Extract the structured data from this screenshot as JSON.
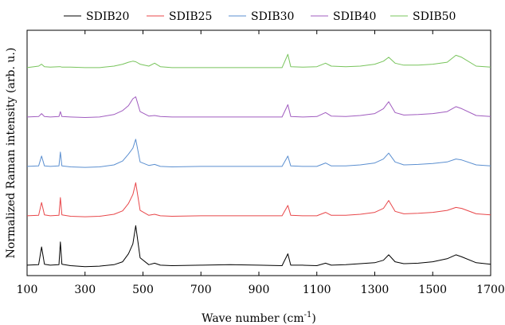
{
  "chart_data": {
    "type": "line",
    "title": "",
    "xlabel": "Wave number (cm",
    "xlabel_sup": "-1",
    "xlabel_close": ")",
    "ylabel": "Normalized Raman intensity (arb. u.)",
    "xlim": [
      100,
      1700
    ],
    "x_ticks": [
      100,
      300,
      500,
      700,
      900,
      1100,
      1300,
      1500,
      1700
    ],
    "x_tick_labels": [
      "100",
      "300",
      "500",
      "700",
      "900",
      "1100",
      "1300",
      "1500",
      "1700"
    ],
    "y_ticks_shown": false,
    "grid": false,
    "legend_position": "top-outside",
    "x": [
      100,
      140,
      150,
      160,
      180,
      210,
      215,
      220,
      250,
      300,
      350,
      400,
      430,
      450,
      465,
      475,
      490,
      520,
      540,
      560,
      600,
      700,
      800,
      900,
      980,
      1000,
      1010,
      1050,
      1100,
      1130,
      1150,
      1200,
      1250,
      1300,
      1330,
      1348,
      1370,
      1400,
      1450,
      1500,
      1550,
      1580,
      1600,
      1650,
      1700
    ],
    "series": [
      {
        "name": "SDIB20",
        "color": "#000000",
        "offset": 0,
        "values": [
          0.05,
          0.06,
          0.42,
          0.07,
          0.05,
          0.06,
          0.52,
          0.07,
          0.04,
          0.02,
          0.03,
          0.06,
          0.12,
          0.28,
          0.48,
          0.85,
          0.2,
          0.06,
          0.09,
          0.05,
          0.04,
          0.05,
          0.06,
          0.05,
          0.04,
          0.28,
          0.05,
          0.05,
          0.04,
          0.09,
          0.05,
          0.06,
          0.08,
          0.1,
          0.15,
          0.26,
          0.12,
          0.08,
          0.09,
          0.12,
          0.18,
          0.26,
          0.22,
          0.1,
          0.07
        ]
      },
      {
        "name": "SDIB25",
        "color": "#e8474a",
        "offset": 1,
        "values": [
          0.05,
          0.06,
          0.32,
          0.07,
          0.05,
          0.06,
          0.42,
          0.07,
          0.04,
          0.03,
          0.04,
          0.08,
          0.15,
          0.3,
          0.48,
          0.72,
          0.16,
          0.06,
          0.08,
          0.05,
          0.04,
          0.05,
          0.05,
          0.05,
          0.05,
          0.26,
          0.06,
          0.05,
          0.05,
          0.12,
          0.06,
          0.06,
          0.08,
          0.12,
          0.2,
          0.36,
          0.14,
          0.09,
          0.1,
          0.12,
          0.16,
          0.22,
          0.2,
          0.09,
          0.07
        ]
      },
      {
        "name": "SDIB30",
        "color": "#5b8fd0",
        "offset": 2,
        "values": [
          0.05,
          0.06,
          0.26,
          0.06,
          0.05,
          0.06,
          0.34,
          0.06,
          0.04,
          0.03,
          0.04,
          0.08,
          0.16,
          0.3,
          0.42,
          0.6,
          0.14,
          0.07,
          0.09,
          0.05,
          0.04,
          0.05,
          0.05,
          0.05,
          0.05,
          0.26,
          0.06,
          0.05,
          0.05,
          0.12,
          0.06,
          0.06,
          0.08,
          0.12,
          0.2,
          0.32,
          0.14,
          0.08,
          0.09,
          0.11,
          0.14,
          0.2,
          0.18,
          0.08,
          0.06
        ]
      },
      {
        "name": "SDIB40",
        "color": "#a05cbf",
        "offset": 3,
        "values": [
          0.05,
          0.06,
          0.12,
          0.06,
          0.05,
          0.06,
          0.16,
          0.06,
          0.05,
          0.04,
          0.05,
          0.1,
          0.18,
          0.28,
          0.42,
          0.46,
          0.16,
          0.07,
          0.08,
          0.06,
          0.05,
          0.05,
          0.05,
          0.05,
          0.05,
          0.3,
          0.06,
          0.05,
          0.06,
          0.14,
          0.07,
          0.06,
          0.08,
          0.12,
          0.22,
          0.36,
          0.14,
          0.09,
          0.1,
          0.12,
          0.16,
          0.26,
          0.22,
          0.08,
          0.06
        ]
      },
      {
        "name": "SDIB50",
        "color": "#78c45c",
        "offset": 4,
        "values": [
          0.05,
          0.08,
          0.12,
          0.07,
          0.06,
          0.07,
          0.07,
          0.06,
          0.06,
          0.05,
          0.05,
          0.08,
          0.12,
          0.16,
          0.18,
          0.17,
          0.12,
          0.08,
          0.14,
          0.07,
          0.05,
          0.05,
          0.05,
          0.05,
          0.05,
          0.32,
          0.07,
          0.06,
          0.07,
          0.14,
          0.08,
          0.07,
          0.08,
          0.12,
          0.18,
          0.26,
          0.14,
          0.1,
          0.1,
          0.12,
          0.16,
          0.3,
          0.26,
          0.08,
          0.06
        ]
      }
    ]
  }
}
